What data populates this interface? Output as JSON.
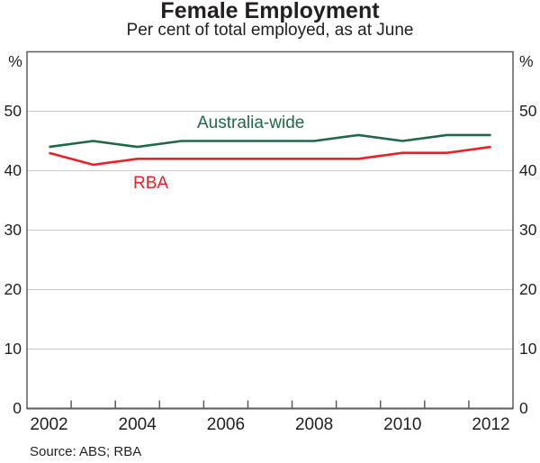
{
  "title": "Female Employment",
  "subtitle": "Per cent of total employed, as at June",
  "source": "Source: ABS; RBA",
  "axis": {
    "unit_left": "%",
    "unit_right": "%",
    "y_tick_labels": [
      50,
      40,
      30,
      20,
      10,
      0
    ],
    "x_tick_labels": [
      2002,
      2004,
      2006,
      2008,
      2010,
      2012
    ]
  },
  "colors": {
    "text": "#231f20",
    "grid": "#c9c9c9",
    "frame": "#5a5b5d",
    "australia_wide": "#1e6946",
    "rba": "#ee2025"
  },
  "chart_data": {
    "type": "line",
    "title": "Female Employment",
    "subtitle": "Per cent of total employed, as at June",
    "ylabel": "%",
    "x": [
      2002,
      2003,
      2004,
      2005,
      2006,
      2007,
      2008,
      2009,
      2010,
      2011,
      2012
    ],
    "series": [
      {
        "name": "Australia-wide",
        "color": "#1e6946",
        "values": [
          44,
          45,
          44,
          45,
          45,
          45,
          45,
          46,
          45,
          46,
          46
        ]
      },
      {
        "name": "RBA",
        "color": "#ee2025",
        "values": [
          43,
          41,
          42,
          42,
          42,
          42,
          42,
          42,
          43,
          43,
          44
        ]
      }
    ],
    "xlim": [
      2001.5,
      2012.5
    ],
    "ylim": [
      0,
      60
    ],
    "y_gridlines": [
      10,
      20,
      30,
      40,
      50
    ],
    "x_minor_ticks": [
      2002.5,
      2003.5,
      2004.5,
      2005.5,
      2006.5,
      2007.5,
      2008.5,
      2009.5,
      2010.5,
      2011.5
    ],
    "grid": true,
    "legend_position": "inline-annotations"
  }
}
